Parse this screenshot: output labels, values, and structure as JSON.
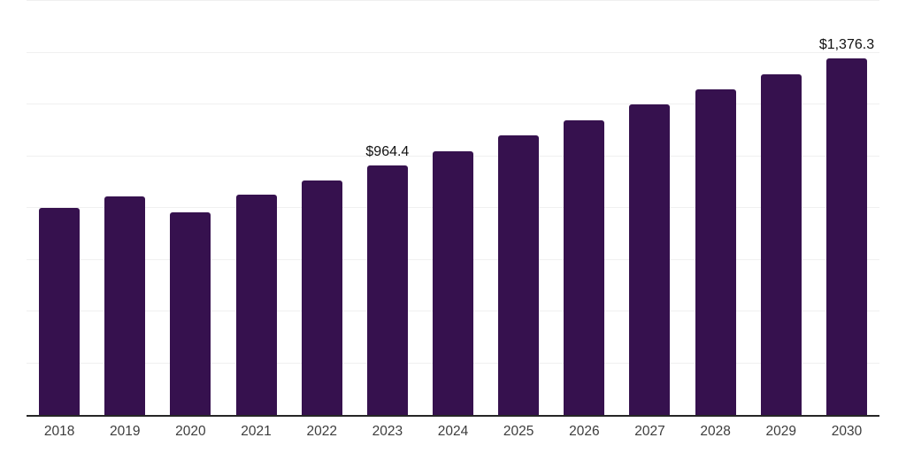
{
  "chart_data": {
    "type": "bar",
    "title": "",
    "xlabel": "",
    "ylabel": "",
    "categories": [
      "2018",
      "2019",
      "2020",
      "2021",
      "2022",
      "2023",
      "2024",
      "2025",
      "2026",
      "2027",
      "2028",
      "2029",
      "2030"
    ],
    "values": [
      800,
      843,
      783,
      850,
      905,
      964.4,
      1020,
      1079,
      1139,
      1199,
      1258,
      1318,
      1376.3
    ],
    "data_labels": {
      "2023": "$964.4",
      "2030": "$1,376.3"
    },
    "ylim": [
      0,
      1600
    ],
    "grid_step": 200,
    "grid": "horizontal-only",
    "legend": "none",
    "colors": {
      "bar": "#36114e",
      "gridline": "#f0f0f0",
      "axis_line": "#262626",
      "tick_label": "#3d3d3d",
      "data_label": "#111111",
      "background": "#ffffff"
    }
  }
}
